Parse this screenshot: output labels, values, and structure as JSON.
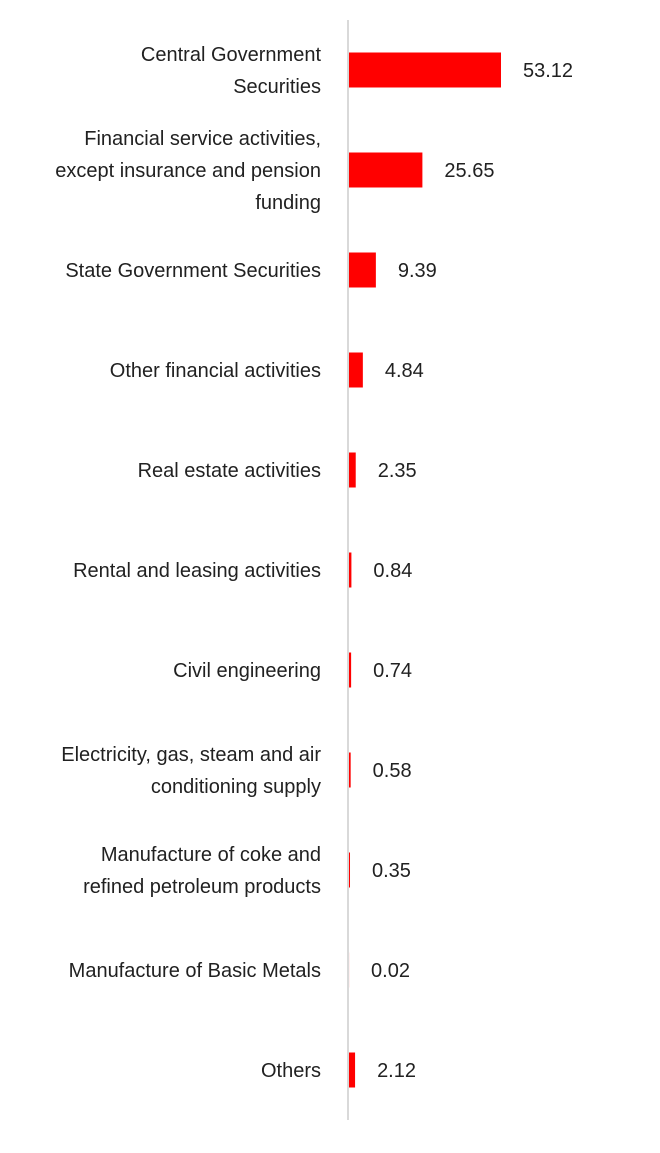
{
  "chart_data": {
    "type": "bar",
    "orientation": "horizontal",
    "categories": [
      "Central Government Securities",
      "Financial service activities, except insurance and pension funding",
      "State Government Securities",
      "Other financial activities",
      "Real estate activities",
      "Rental and leasing activities",
      "Civil engineering",
      "Electricity, gas, steam and air conditioning supply",
      "Manufacture of coke and refined petroleum products",
      "Manufacture of Basic Metals",
      "Others"
    ],
    "category_lines": [
      [
        "Central Government",
        "Securities"
      ],
      [
        "Financial service activities,",
        "except insurance and pension",
        "funding"
      ],
      [
        "State Government Securities"
      ],
      [
        "Other financial activities"
      ],
      [
        "Real estate activities"
      ],
      [
        "Rental and leasing activities"
      ],
      [
        "Civil engineering"
      ],
      [
        "Electricity, gas, steam and air",
        "conditioning supply"
      ],
      [
        "Manufacture of coke and",
        "refined petroleum products"
      ],
      [
        "Manufacture of Basic Metals"
      ],
      [
        "Others"
      ]
    ],
    "values": [
      53.12,
      25.65,
      9.39,
      4.84,
      2.35,
      0.84,
      0.74,
      0.58,
      0.35,
      0.02,
      2.12
    ],
    "value_labels": [
      "53.12",
      "25.65",
      "9.39",
      "4.84",
      "2.35",
      "0.84",
      "0.74",
      "0.58",
      "0.35",
      "0.02",
      "2.12"
    ],
    "title": "",
    "xlabel": "",
    "ylabel": "",
    "xlim": [
      0,
      53.12
    ],
    "grid": false,
    "legend": "none",
    "bar_color": "#ff0000",
    "axis_color": "#d9d9d9"
  }
}
